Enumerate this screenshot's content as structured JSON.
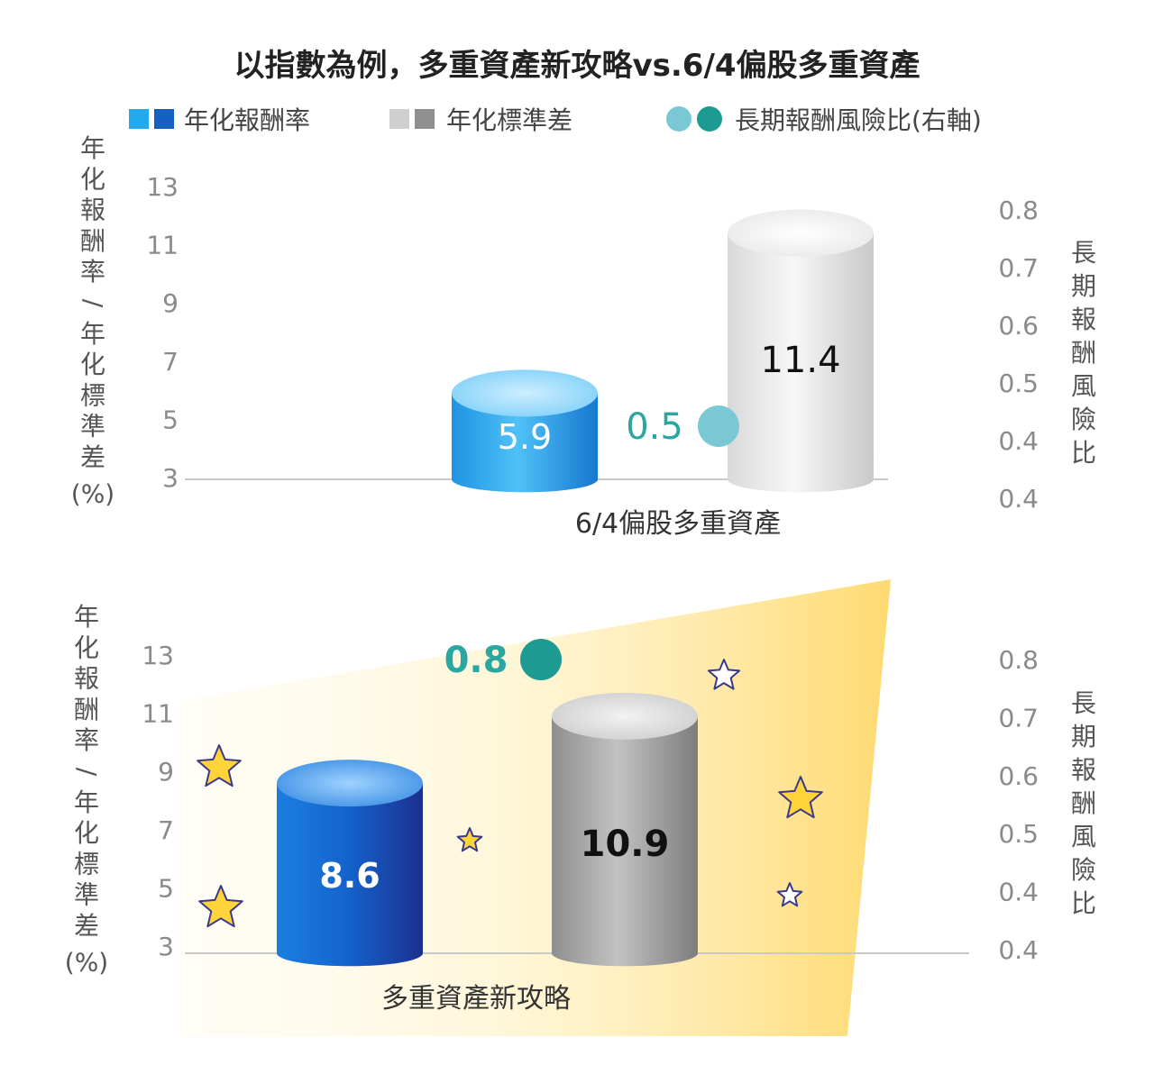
{
  "chart_data": {
    "type": "bar",
    "title": "以指數為例，多重資產新攻略vs.6/4偏股多重資產",
    "legend": {
      "placement": "top",
      "entries": [
        {
          "label": "年化報酬率",
          "colors": [
            "#22a9ee",
            "#1560c0"
          ]
        },
        {
          "label": "年化標準差",
          "colors": [
            "#cfcfcf",
            "#8f8f8f"
          ]
        },
        {
          "label": "長期報酬風險比(右軸)",
          "colors": [
            "#7ac8d4",
            "#1d9a92"
          ]
        }
      ]
    },
    "ylabel": "年化報酬率/年化標準差",
    "ylabel_unit": "(%)",
    "y2label": "長期報酬風險比",
    "yticks": [
      "13",
      "11",
      "9",
      "7",
      "5",
      "3"
    ],
    "y2ticks": [
      "0.8",
      "0.7",
      "0.6",
      "0.5",
      "0.4",
      "0.4"
    ],
    "ylim": [
      3,
      13
    ],
    "y2lim": [
      0.4,
      0.8
    ],
    "grid": false,
    "panels": [
      {
        "category": "6/4偏股多重資產",
        "series": [
          {
            "name": "年化報酬率",
            "value": 5.9,
            "label": "5.9",
            "color": "#3db3f2"
          },
          {
            "name": "年化標準差",
            "value": 11.4,
            "label": "11.4",
            "color": "#e4e4e4"
          }
        ],
        "ratio": {
          "name": "長期報酬風險比(右軸)",
          "value": 0.5,
          "label": "0.5",
          "color": "#7ac8d4"
        }
      },
      {
        "category": "多重資產新攻略",
        "series": [
          {
            "name": "年化報酬率",
            "value": 8.6,
            "label": "8.6",
            "color": "#1466c8"
          },
          {
            "name": "年化標準差",
            "value": 10.9,
            "label": "10.9",
            "color": "#a7a7a7"
          }
        ],
        "ratio": {
          "name": "長期報酬風險比(右軸)",
          "value": 0.8,
          "label": "0.8",
          "color": "#1d9a92"
        }
      }
    ]
  }
}
